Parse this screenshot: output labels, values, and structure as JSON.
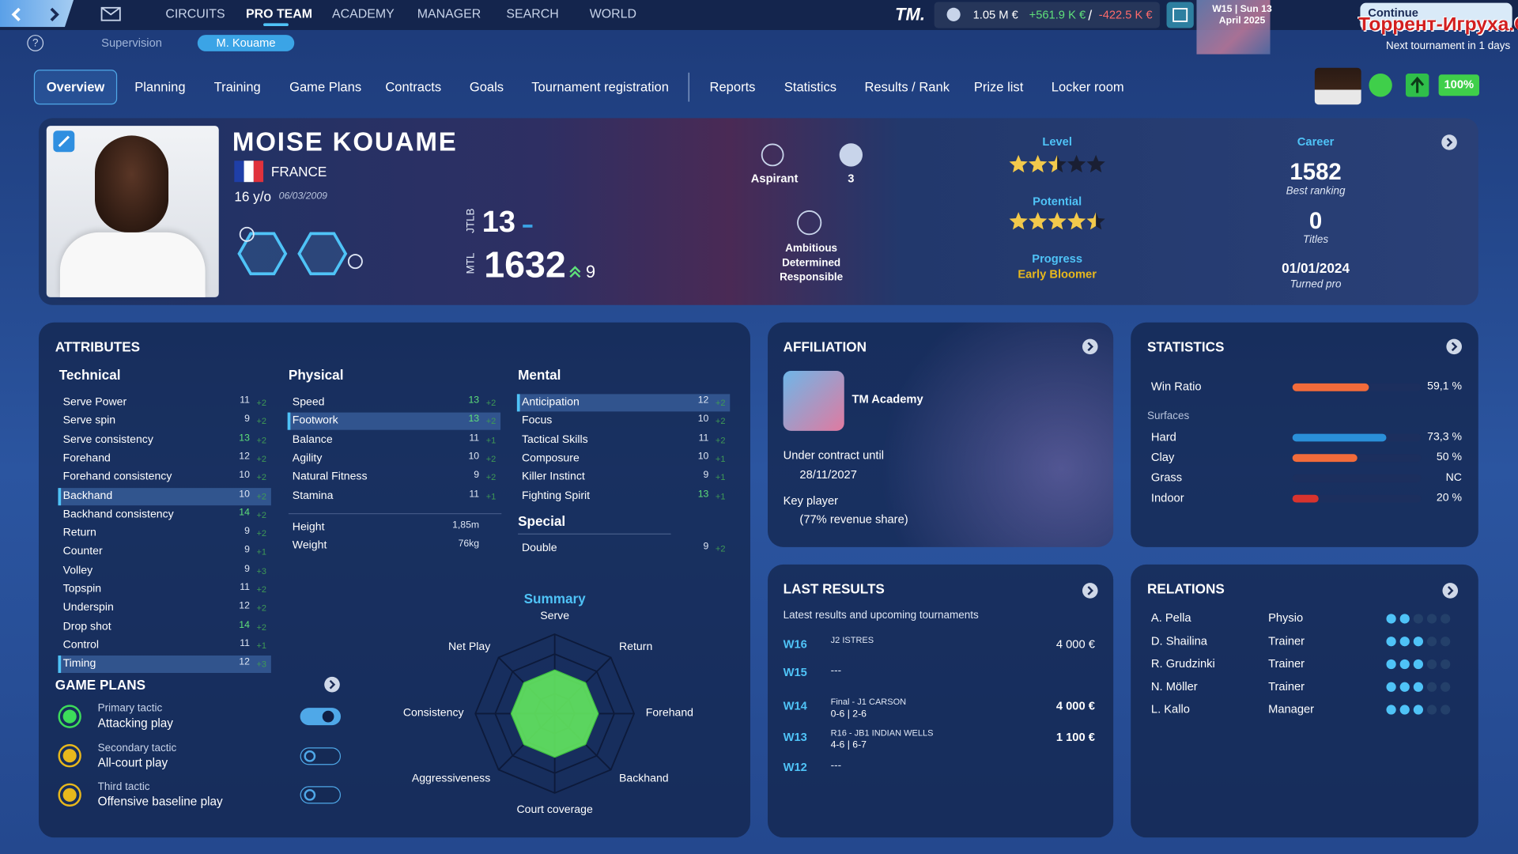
{
  "nav": {
    "items": [
      "CIRCUITS",
      "PRO TEAM",
      "ACADEMY",
      "MANAGER",
      "SEARCH",
      "WORLD"
    ],
    "active": 1
  },
  "finance": {
    "logo": "TM.",
    "balance": "1.05 M €",
    "income": "+561.9 K €",
    "separator": "/",
    "expense": "-422.5 K €"
  },
  "date": {
    "week": "W15 | Sun 13",
    "month": "April 2025"
  },
  "continue": {
    "label": "Continue",
    "next": "Next tournament in 1 days"
  },
  "watermark": "Торрент-Игруха.Орг",
  "subnav": {
    "help": "?",
    "items": [
      "Supervision",
      "M. Kouame"
    ],
    "active": 1
  },
  "tabs": {
    "items": [
      "Overview",
      "Planning",
      "Training",
      "Game Plans",
      "Contracts",
      "Goals",
      "Tournament registration",
      "Reports",
      "Statistics",
      "Results / Rank",
      "Prize list",
      "Locker room"
    ],
    "active": 0
  },
  "status": {
    "fitness": "100%"
  },
  "player": {
    "name": "MOISE KOUAME",
    "country": "FRANCE",
    "age": "16 y/o",
    "birth_date": "06/03/2009",
    "jtlb_label": "JTLB",
    "jtlb": 13,
    "mtl_label": "MTL",
    "mtl": 1632,
    "mtl_change": 9,
    "rank_title": "Aspirant",
    "badges": 3,
    "traits": [
      "Ambitious",
      "Determined",
      "Responsible"
    ],
    "level_label": "Level",
    "level": 2.5,
    "potential_label": "Potential",
    "potential": 4.5,
    "stars_max": 5,
    "progress_label": "Progress",
    "progress": "Early Bloomer",
    "career_label": "Career",
    "best_ranking": 1582,
    "best_ranking_label": "Best ranking",
    "titles": 0,
    "titles_label": "Titles",
    "turned_pro": "01/01/2024",
    "turned_pro_label": "Turned pro"
  },
  "attributes": {
    "title": "ATTRIBUTES",
    "groups": [
      {
        "title": "Technical",
        "rows": [
          {
            "name": "Serve Power",
            "value": 11,
            "delta": "+2"
          },
          {
            "name": "Serve spin",
            "value": 9,
            "delta": "+2"
          },
          {
            "name": "Serve consistency",
            "value": 13,
            "delta": "+2"
          },
          {
            "name": "Forehand",
            "value": 12,
            "delta": "+2"
          },
          {
            "name": "Forehand consistency",
            "value": 10,
            "delta": "+2"
          },
          {
            "name": "Backhand",
            "value": 10,
            "delta": "+2",
            "highlight": true
          },
          {
            "name": "Backhand consistency",
            "value": 14,
            "delta": "+2"
          },
          {
            "name": "Return",
            "value": 9,
            "delta": "+2"
          },
          {
            "name": "Counter",
            "value": 9,
            "delta": "+1"
          },
          {
            "name": "Volley",
            "value": 9,
            "delta": "+3"
          },
          {
            "name": "Topspin",
            "value": 11,
            "delta": "+2"
          },
          {
            "name": "Underspin",
            "value": 12,
            "delta": "+2"
          },
          {
            "name": "Drop shot",
            "value": 14,
            "delta": "+2"
          },
          {
            "name": "Control",
            "value": 11,
            "delta": "+1"
          },
          {
            "name": "Timing",
            "value": 12,
            "delta": "+3",
            "highlight": true
          }
        ]
      },
      {
        "title": "Physical",
        "rows": [
          {
            "name": "Speed",
            "value": 13,
            "delta": "+2"
          },
          {
            "name": "Footwork",
            "value": 13,
            "delta": "+2",
            "highlight": true
          },
          {
            "name": "Balance",
            "value": 11,
            "delta": "+1"
          },
          {
            "name": "Agility",
            "value": 10,
            "delta": "+2"
          },
          {
            "name": "Natural Fitness",
            "value": 9,
            "delta": "+2"
          },
          {
            "name": "Stamina",
            "value": 11,
            "delta": "+1"
          }
        ]
      },
      {
        "title": "Mental",
        "rows": [
          {
            "name": "Anticipation",
            "value": 12,
            "delta": "+2",
            "highlight": true
          },
          {
            "name": "Focus",
            "value": 10,
            "delta": "+2"
          },
          {
            "name": "Tactical Skills",
            "value": 11,
            "delta": "+2"
          },
          {
            "name": "Composure",
            "value": 10,
            "delta": "+1"
          },
          {
            "name": "Killer Instinct",
            "value": 9,
            "delta": "+1"
          },
          {
            "name": "Fighting Spirit",
            "value": 13,
            "delta": "+1"
          }
        ]
      }
    ],
    "measures": [
      {
        "name": "Height",
        "value": "1,85m"
      },
      {
        "name": "Weight",
        "value": "76kg"
      }
    ],
    "special": {
      "title": "Special",
      "rows": [
        {
          "name": "Double",
          "value": 9,
          "delta": "+2"
        }
      ]
    }
  },
  "game_plans": {
    "title": "GAME PLANS",
    "plans": [
      {
        "label": "Primary tactic",
        "tactic": "Attacking play",
        "enabled": true,
        "color": "#3ddc5a"
      },
      {
        "label": "Secondary tactic",
        "tactic": "All-court play",
        "enabled": false,
        "color": "#e8b81c"
      },
      {
        "label": "Third tactic",
        "tactic": "Offensive baseline play",
        "enabled": false,
        "color": "#e8b81c"
      }
    ]
  },
  "summary": {
    "title": "Summary",
    "axes": [
      "Serve",
      "Return",
      "Forehand",
      "Backhand",
      "Court coverage",
      "Aggressiveness",
      "Consistency",
      "Net Play"
    ],
    "values": [
      11,
      11,
      11,
      11,
      11,
      11,
      11,
      11
    ],
    "rlim": [
      0,
      20
    ],
    "color": "#63e85f"
  },
  "affiliation": {
    "title": "AFFILIATION",
    "club": "TM Academy",
    "contract_label": "Under contract until",
    "contract_end": "28/11/2027",
    "role": "Key player",
    "revenue": "(77% revenue share)"
  },
  "statistics": {
    "title": "STATISTICS",
    "max": 100,
    "win_ratio": {
      "name": "Win Ratio",
      "value": 59.1,
      "label": "59,1 %",
      "color": "#f26b3a"
    },
    "surfaces_label": "Surfaces",
    "surfaces": [
      {
        "name": "Hard",
        "value": 73.3,
        "label": "73,3 %",
        "color": "#2a8fd8"
      },
      {
        "name": "Clay",
        "value": 50,
        "label": "50 %",
        "color": "#f26b3a"
      },
      {
        "name": "Grass",
        "value": null,
        "label": "NC",
        "color": "#3ca24a"
      },
      {
        "name": "Indoor",
        "value": 20,
        "label": "20 %",
        "color": "#d8332e"
      }
    ]
  },
  "last_results": {
    "title": "LAST RESULTS",
    "subtitle": "Latest results and upcoming tournaments",
    "rows": [
      {
        "week": "W16",
        "event": "J2 ISTRES",
        "prize": "4 000 €"
      },
      {
        "week": "W15",
        "event": "---"
      },
      {
        "week": "W14",
        "event": "Final - J1 CARSON",
        "score": "0-6 | 2-6",
        "prize": "4 000 €",
        "bold": true
      },
      {
        "week": "W13",
        "event": "R16 - JB1 INDIAN WELLS",
        "score": "4-6 | 6-7",
        "prize": "1 100 €",
        "bold": true
      },
      {
        "week": "W12",
        "event": "---"
      }
    ]
  },
  "relations": {
    "title": "RELATIONS",
    "dots_max": 5,
    "people": [
      {
        "name": "A. Pella",
        "role": "Physio",
        "level": 2
      },
      {
        "name": "D. Shailina",
        "role": "Trainer",
        "level": 3
      },
      {
        "name": "R. Grudzinki",
        "role": "Trainer",
        "level": 3
      },
      {
        "name": "N. Möller",
        "role": "Trainer",
        "level": 3
      },
      {
        "name": "L. Kallo",
        "role": "Manager",
        "level": 3
      }
    ]
  }
}
